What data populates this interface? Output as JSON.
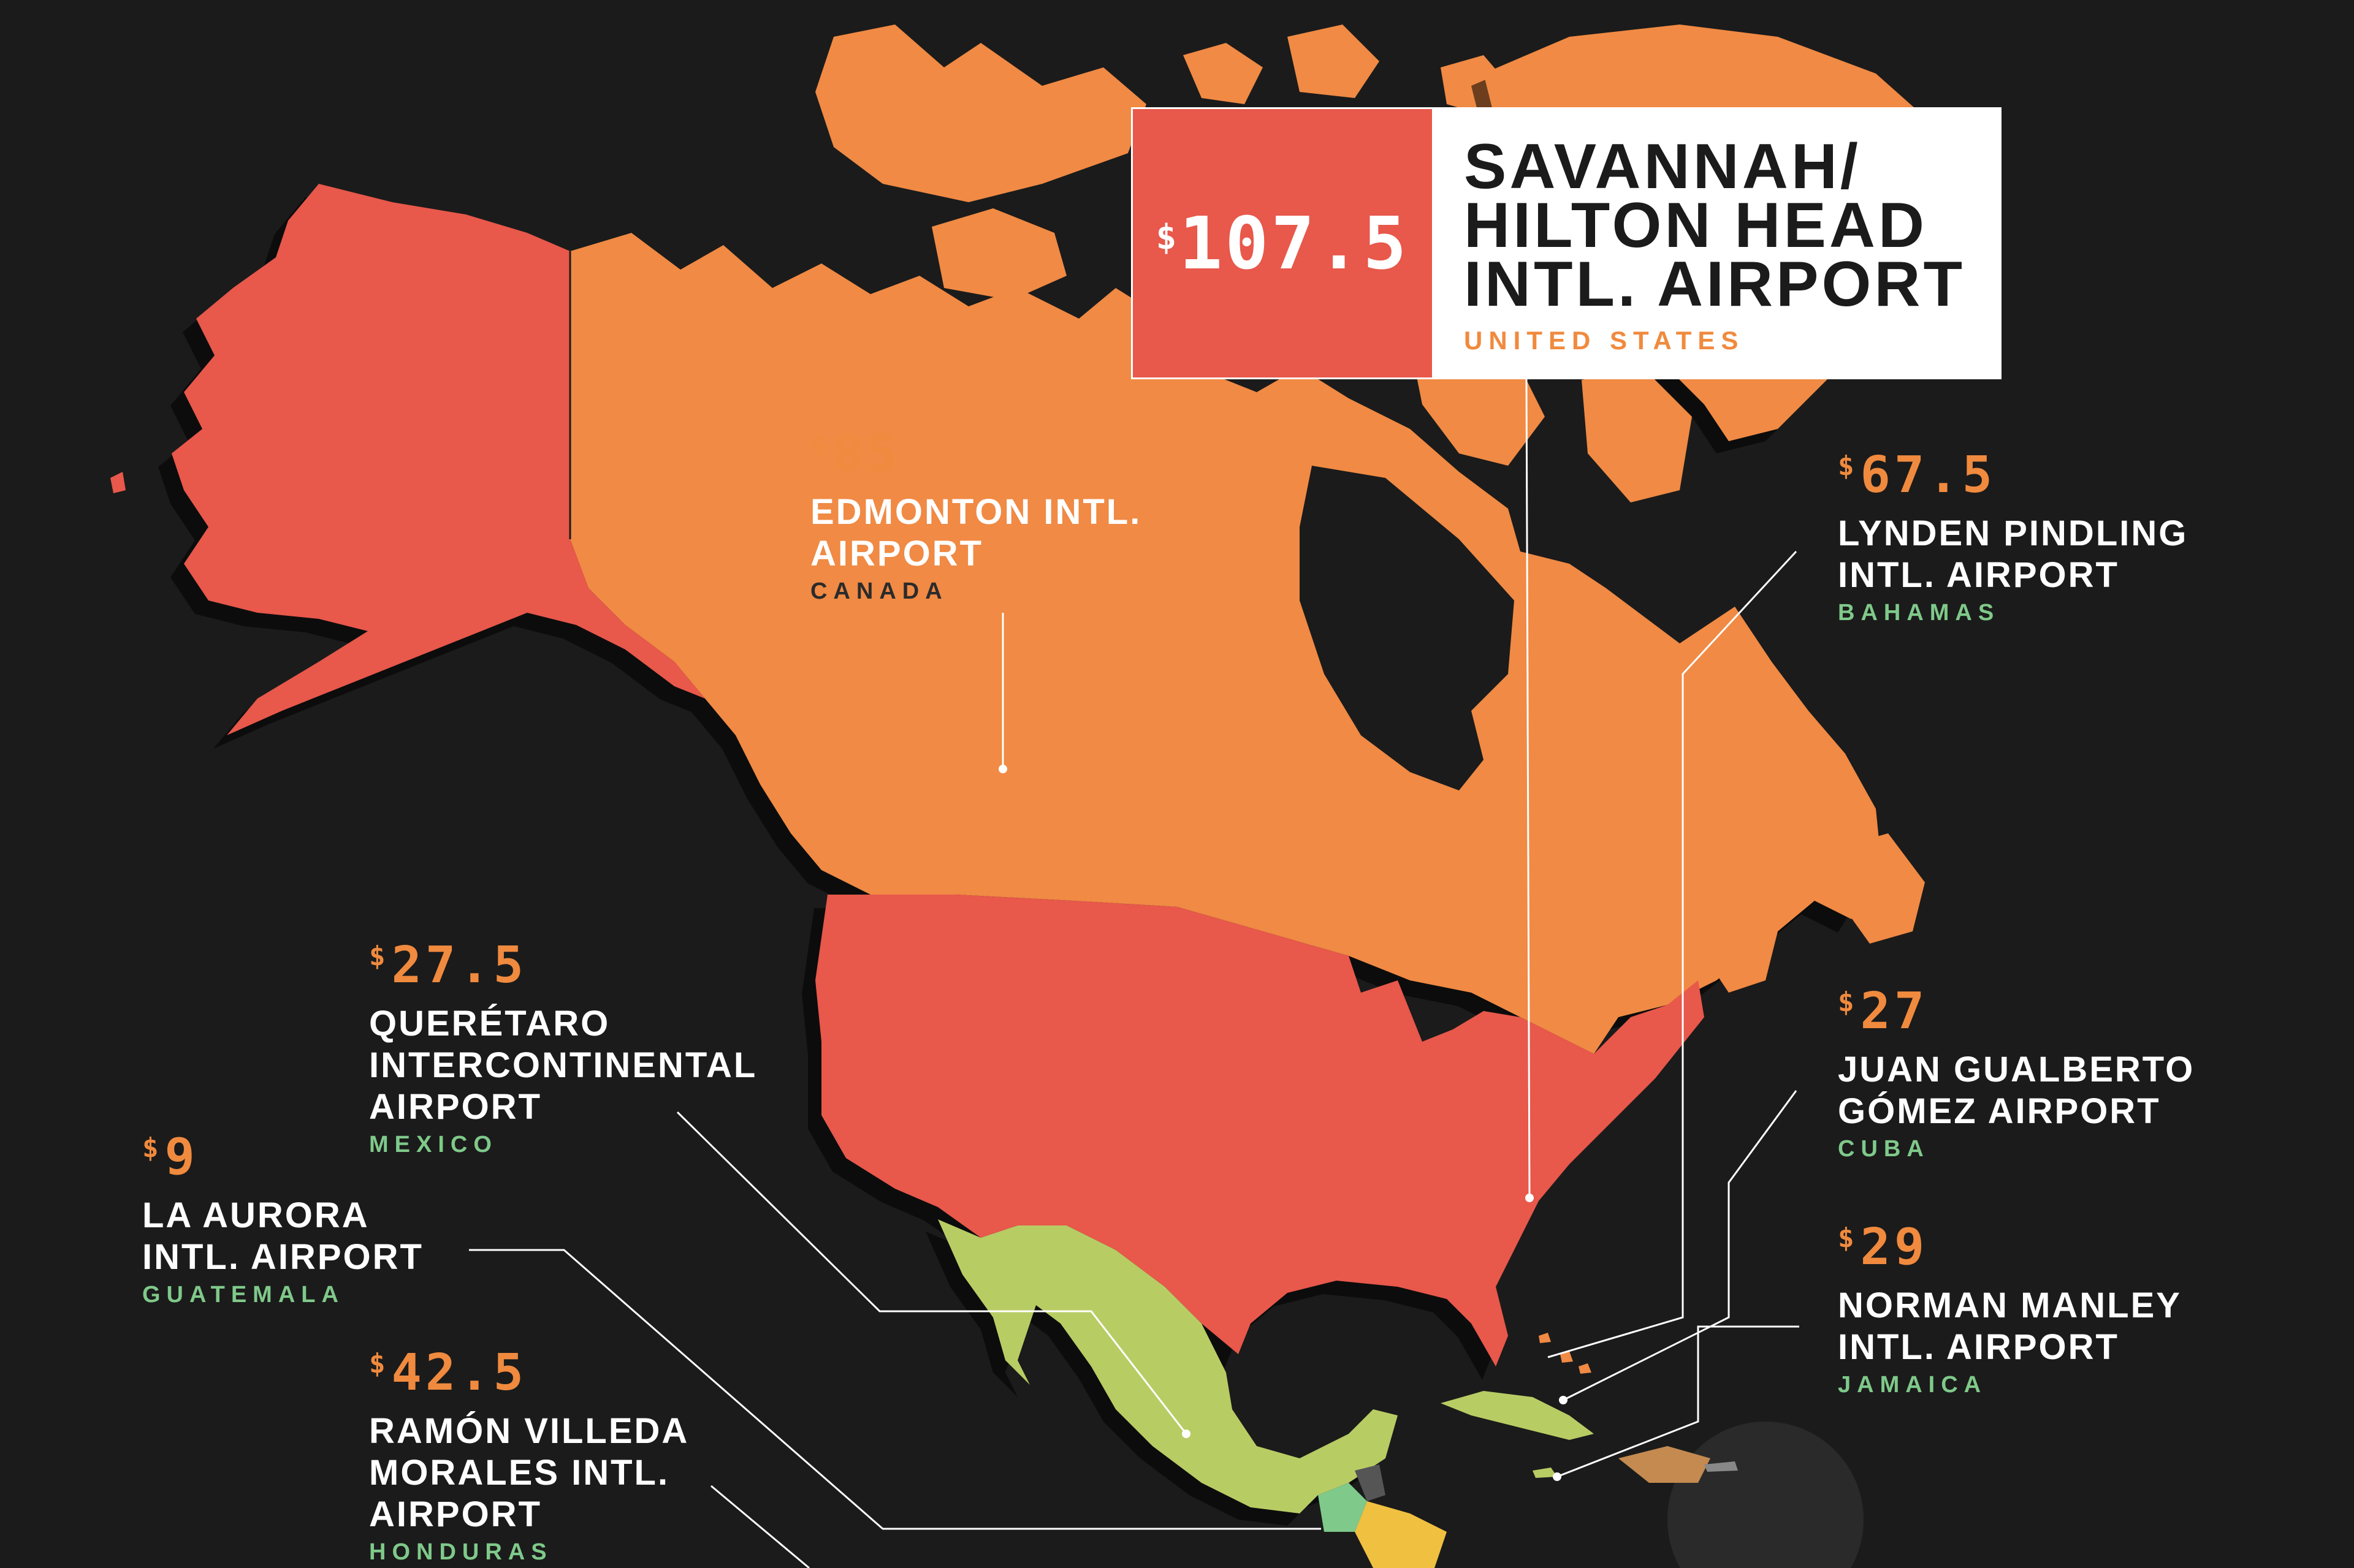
{
  "colors": {
    "background": "#1b1b1b",
    "canada": "#f08a44",
    "united_states": "#e8584b",
    "mexico": "#b8cc64",
    "greenland": "#f08a44",
    "price_text": "#f08a3e",
    "country_label": "#7fc98a",
    "leader_line": "#ffffff"
  },
  "featured": {
    "currency": "$",
    "amount": "107.5",
    "airport": "SAVANNAH/ HILTON HEAD INTL. AIRPORT",
    "country": "UNITED STATES"
  },
  "callouts": [
    {
      "id": "edmonton",
      "currency": "$",
      "amount": "85",
      "airport": "EDMONTON INTL. AIRPORT",
      "country": "CANADA"
    },
    {
      "id": "lynden",
      "currency": "$",
      "amount": "67.5",
      "airport": "LYNDEN PINDLING INTL. AIRPORT",
      "country": "BAHAMAS"
    },
    {
      "id": "queretaro",
      "currency": "$",
      "amount": "27.5",
      "airport": "QUERÉTARO INTERCONTINENTAL AIRPORT",
      "country": "MEXICO"
    },
    {
      "id": "juan",
      "currency": "$",
      "amount": "27",
      "airport": "JUAN GUALBERTO GÓMEZ AIRPORT",
      "country": "CUBA"
    },
    {
      "id": "aurora",
      "currency": "$",
      "amount": "9",
      "airport": "LA AURORA INTL. AIRPORT",
      "country": "GUATEMALA"
    },
    {
      "id": "norman",
      "currency": "$",
      "amount": "29",
      "airport": "NORMAN MANLEY INTL. AIRPORT",
      "country": "JAMAICA"
    },
    {
      "id": "ramon",
      "currency": "$",
      "amount": "42.5",
      "airport": "RAMÓN VILLEDA MORALES INTL. AIRPORT",
      "country": "HONDURAS"
    }
  ]
}
